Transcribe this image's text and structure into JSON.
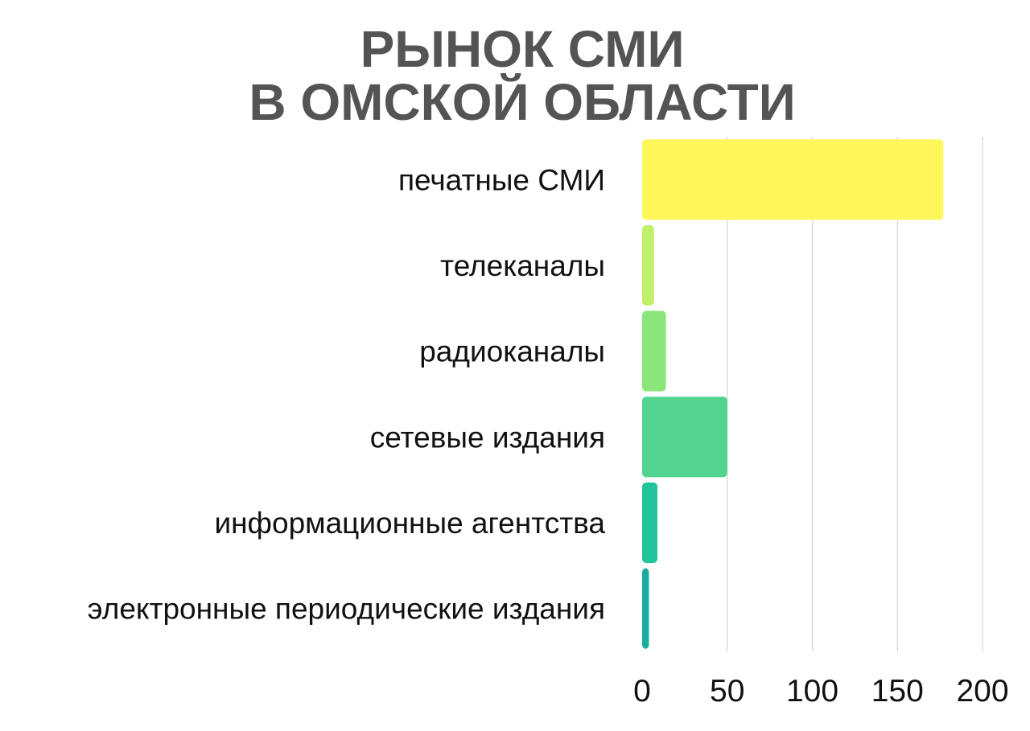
{
  "chart_data": {
    "type": "bar",
    "orientation": "horizontal",
    "title": [
      "РЫНОК СМИ",
      "В ОМСКОЙ ОБЛАСТИ"
    ],
    "categories": [
      "печатные СМИ",
      "телеканалы",
      "радиоканалы",
      "сетевые издания",
      "информационные агентства",
      "электронные периодические издания"
    ],
    "values": [
      177,
      7,
      14,
      50,
      9,
      4
    ],
    "colors": [
      "#fff75a",
      "#c1f06b",
      "#8ae57a",
      "#52d490",
      "#22c59a",
      "#17ae9c"
    ],
    "xlim": [
      0,
      200
    ],
    "xticks": [
      "0",
      "50",
      "100",
      "150",
      "200"
    ],
    "grid": true,
    "legend": false
  }
}
